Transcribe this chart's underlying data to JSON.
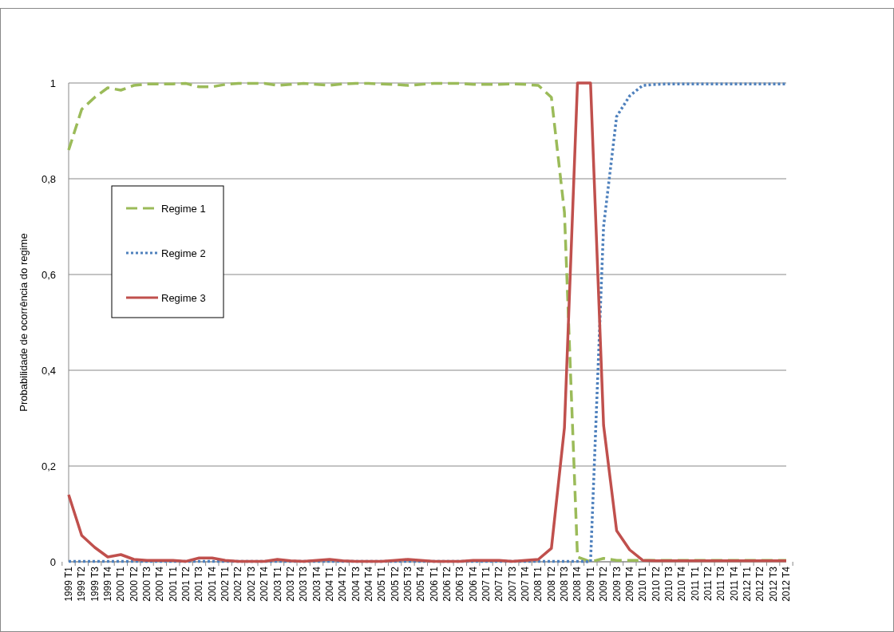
{
  "chart_data": {
    "type": "line",
    "ylabel": "Probabilidade de ocorrência do regime",
    "categories": [
      "1999 T1",
      "1999 T2",
      "1999 T3",
      "1999 T4",
      "2000 T1",
      "2000 T2",
      "2000 T3",
      "2000 T4",
      "2001 T1",
      "2001 T2",
      "2001 T3",
      "2001 T4",
      "2002 T1",
      "2002 T2",
      "2002 T3",
      "2002 T4",
      "2003 T1",
      "2003 T2",
      "2003 T3",
      "2003 T4",
      "2004 T1",
      "2004 T2",
      "2004 T3",
      "2004 T4",
      "2005 T1",
      "2005 T2",
      "2005 T3",
      "2005 T4",
      "2006 T1",
      "2006 T2",
      "2006 T3",
      "2006 T4",
      "2007 T1",
      "2007 T2",
      "2007 T3",
      "2007 T4",
      "2008 T1",
      "2008 T2",
      "2008 T3",
      "2008 T4",
      "2009 T1",
      "2009 T2",
      "2009 T3",
      "2009 T4",
      "2010 T1",
      "2010 T2",
      "2010 T3",
      "2010 T4",
      "2011 T1",
      "2011 T2",
      "2011 T3",
      "2011 T4",
      "2012 T1",
      "2012 T2",
      "2012 T3",
      "2012 T4"
    ],
    "series": [
      {
        "name": "Regime 1",
        "color": "#9bbb59",
        "line_style": "dashed",
        "values": [
          0.86,
          0.945,
          0.97,
          0.99,
          0.985,
          0.995,
          0.998,
          0.998,
          0.998,
          0.999,
          0.992,
          0.992,
          0.997,
          0.999,
          0.999,
          0.999,
          0.995,
          0.997,
          0.999,
          0.997,
          0.995,
          0.998,
          0.999,
          0.999,
          0.998,
          0.997,
          0.995,
          0.997,
          0.999,
          0.999,
          0.999,
          0.997,
          0.997,
          0.997,
          0.998,
          0.997,
          0.995,
          0.97,
          0.73,
          0.01,
          0.0,
          0.007,
          0.003,
          0.003,
          0.003,
          0.003,
          0.003,
          0.003,
          0.003,
          0.003,
          0.003,
          0.003,
          0.003,
          0.003,
          0.003,
          0.003
        ]
      },
      {
        "name": "Regime 2",
        "color": "#4f81bd",
        "line_style": "dotted",
        "values": [
          0.001,
          0.001,
          0.001,
          0.001,
          0.001,
          0.001,
          0.001,
          0.001,
          0.001,
          0.001,
          0.001,
          0.001,
          0.001,
          0.001,
          0.001,
          0.001,
          0.001,
          0.001,
          0.001,
          0.001,
          0.001,
          0.001,
          0.001,
          0.001,
          0.001,
          0.001,
          0.001,
          0.001,
          0.001,
          0.001,
          0.001,
          0.001,
          0.001,
          0.001,
          0.001,
          0.001,
          0.001,
          0.001,
          0.001,
          0.001,
          0.0,
          0.7,
          0.93,
          0.973,
          0.995,
          0.997,
          0.998,
          0.998,
          0.998,
          0.998,
          0.998,
          0.998,
          0.998,
          0.998,
          0.998,
          0.998
        ]
      },
      {
        "name": "Regime 3",
        "color": "#c0504d",
        "line_style": "solid",
        "values": [
          0.14,
          0.055,
          0.03,
          0.01,
          0.015,
          0.005,
          0.003,
          0.003,
          0.003,
          0.001,
          0.008,
          0.008,
          0.003,
          0.001,
          0.001,
          0.001,
          0.005,
          0.002,
          0.001,
          0.003,
          0.005,
          0.002,
          0.001,
          0.001,
          0.001,
          0.003,
          0.005,
          0.003,
          0.001,
          0.001,
          0.001,
          0.003,
          0.003,
          0.003,
          0.001,
          0.003,
          0.005,
          0.028,
          0.28,
          1,
          1,
          0.285,
          0.065,
          0.025,
          0.003,
          0.002,
          0.002,
          0.002,
          0.002,
          0.002,
          0.002,
          0.002,
          0.002,
          0.002,
          0.002,
          0.002
        ]
      }
    ],
    "ylim": [
      0,
      1
    ],
    "yticks": [
      0,
      {
        "value": 0.2,
        "label": "0,2"
      },
      {
        "value": 0.4,
        "label": "0,4"
      },
      {
        "value": 0.6,
        "label": "0,6"
      },
      {
        "value": 0.8,
        "label": "0,8"
      },
      1
    ],
    "grid": "y",
    "legend": "left",
    "marker": "none"
  }
}
